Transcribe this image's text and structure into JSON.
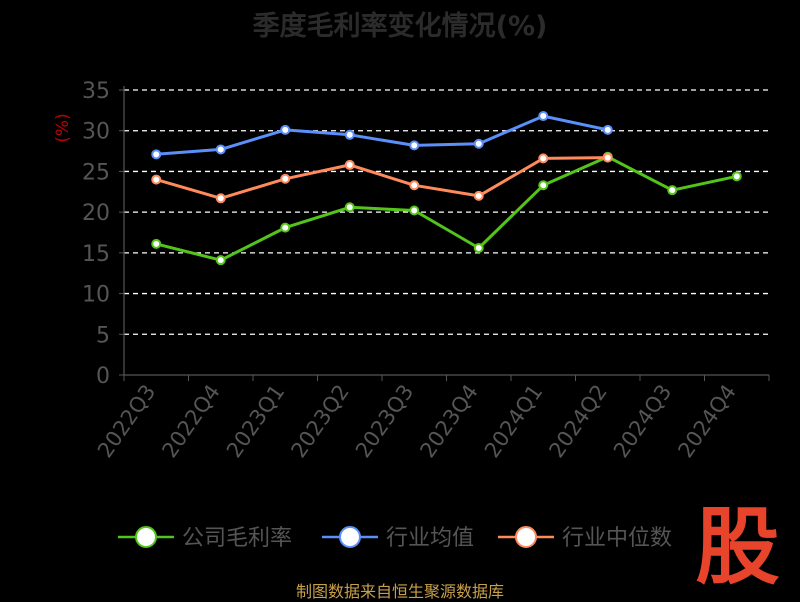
{
  "title": "季度毛利率变化情况(%)",
  "source": "制图数据来自恒生聚源数据库",
  "watermark": "股",
  "colors": {
    "background": "#000000",
    "axis": "#555555",
    "grid": "#ffffff",
    "tick_label": "#555555",
    "unit_label": "#c00000",
    "watermark": "#e8432b"
  },
  "chart_data": {
    "type": "line",
    "ylabel": "(%)",
    "ylim": [
      0,
      35
    ],
    "yticks": [
      0,
      5,
      10,
      15,
      20,
      25,
      30,
      35
    ],
    "grid": "horizontal-dashed",
    "legend_position": "bottom",
    "categories": [
      "2022Q3",
      "2022Q4",
      "2023Q1",
      "2023Q2",
      "2023Q3",
      "2023Q4",
      "2024Q1",
      "2024Q2",
      "2024Q3",
      "2024Q4"
    ],
    "series": [
      {
        "name": "公司毛利率",
        "color": "#52c41a",
        "values": [
          16.1,
          14.1,
          18.1,
          20.6,
          20.2,
          15.6,
          23.3,
          26.8,
          22.7,
          24.4
        ]
      },
      {
        "name": "行业均值",
        "color": "#5b8ff9",
        "values": [
          27.1,
          27.7,
          30.1,
          29.5,
          28.2,
          28.4,
          31.8,
          30.1,
          null,
          null
        ]
      },
      {
        "name": "行业中位数",
        "color": "#ff8a5c",
        "values": [
          24.0,
          21.7,
          24.1,
          25.8,
          23.3,
          22.0,
          26.6,
          26.7,
          null,
          null
        ]
      }
    ]
  }
}
